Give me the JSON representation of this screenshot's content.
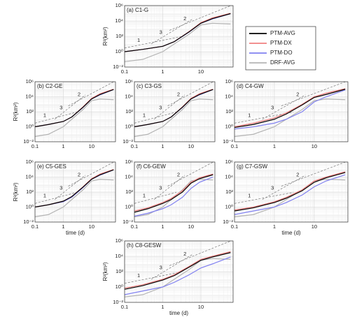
{
  "chart_data": [
    {
      "type": "line",
      "title": "(a) C1-G",
      "ylabel": "R²(km²)",
      "legend": true,
      "x": [
        0.1,
        0.3,
        1,
        2,
        5,
        10,
        20,
        60
      ],
      "series": [
        {
          "name": "PTM-AVG",
          "color": "#000000",
          "values": [
            1,
            2,
            5,
            20,
            400,
            5000,
            20000,
            90000
          ]
        },
        {
          "name": "PTM-DX",
          "color": "#f08080",
          "values": [
            1,
            2,
            5,
            20,
            450,
            6000,
            25000,
            100000
          ]
        },
        {
          "name": "PTM-DO",
          "color": "#8080f0",
          "values": [
            1,
            2,
            5,
            20,
            380,
            5000,
            18000,
            90000
          ]
        },
        {
          "name": "DRF-AVG",
          "color": "#b4b4b4",
          "values": [
            0.05,
            0.1,
            1,
            10,
            200,
            3000,
            5000,
            4000
          ]
        }
      ],
      "xlim": [
        0.1,
        70
      ],
      "ylim": [
        0.01,
        1000000
      ],
      "xticks": [
        0.1,
        1,
        10
      ],
      "yticks": [
        {
          "value": 0.01,
          "label": "10⁻²"
        },
        {
          "value": 1,
          "label": "10⁰"
        },
        {
          "value": 100,
          "label": "10²"
        },
        {
          "value": 10000,
          "label": "10⁴"
        },
        {
          "value": 1000000,
          "label": "10⁶"
        }
      ],
      "log_x": true,
      "log_y": true,
      "grid": true,
      "reference_lines": [
        {
          "label": "1",
          "x": [
            0.1,
            3
          ],
          "y": [
            3,
            90
          ]
        },
        {
          "label": "3",
          "x": [
            0.5,
            6
          ],
          "y": [
            10,
            17280
          ]
        },
        {
          "label": "2",
          "x": [
            1.5,
            60
          ],
          "y": [
            600,
            960000
          ]
        }
      ]
    },
    {
      "type": "line",
      "title": "(b) C2-GE",
      "ylabel": "R²(km²)",
      "x": [
        0.1,
        0.3,
        1,
        2,
        5,
        10,
        20,
        60
      ],
      "series": [
        {
          "color": "#000000",
          "values": [
            1,
            2,
            5,
            20,
            400,
            5000,
            20000,
            90000
          ]
        },
        {
          "color": "#f08080",
          "values": [
            1,
            2,
            5,
            20,
            450,
            6000,
            25000,
            100000
          ]
        },
        {
          "color": "#8080f0",
          "values": [
            1,
            2,
            5,
            20,
            380,
            5000,
            18000,
            90000
          ]
        },
        {
          "color": "#b4b4b4",
          "values": [
            0.05,
            0.1,
            1,
            10,
            200,
            3000,
            5000,
            4000
          ]
        }
      ],
      "xlim": [
        0.1,
        70
      ],
      "ylim": [
        0.01,
        1000000
      ],
      "xticks": [
        0.1,
        1,
        10
      ],
      "yticks": [
        {
          "value": 0.01,
          "label": "10⁻²"
        },
        {
          "value": 1,
          "label": "10⁰"
        },
        {
          "value": 100,
          "label": "10²"
        },
        {
          "value": 10000,
          "label": "10⁴"
        },
        {
          "value": 1000000,
          "label": "10⁶"
        }
      ],
      "log_x": true,
      "log_y": true,
      "grid": true,
      "reference_lines": [
        {
          "label": "1",
          "x": [
            0.1,
            3
          ],
          "y": [
            3,
            90
          ]
        },
        {
          "label": "3",
          "x": [
            0.5,
            6
          ],
          "y": [
            10,
            17280
          ]
        },
        {
          "label": "2",
          "x": [
            1.5,
            60
          ],
          "y": [
            600,
            960000
          ]
        }
      ]
    },
    {
      "type": "line",
      "title": "(c) C3-GS",
      "x": [
        0.1,
        0.3,
        1,
        2,
        5,
        10,
        20,
        60
      ],
      "series": [
        {
          "color": "#000000",
          "values": [
            1,
            2,
            5,
            20,
            400,
            5000,
            20000,
            90000
          ]
        },
        {
          "color": "#f08080",
          "values": [
            1,
            2,
            5,
            20,
            450,
            6000,
            25000,
            100000
          ]
        },
        {
          "color": "#8080f0",
          "values": [
            1,
            2,
            5,
            20,
            380,
            5000,
            18000,
            90000
          ]
        },
        {
          "color": "#b4b4b4",
          "values": [
            0.05,
            0.1,
            1,
            10,
            200,
            3000,
            5000,
            4000
          ]
        }
      ],
      "xlim": [
        0.1,
        70
      ],
      "ylim": [
        0.01,
        1000000
      ],
      "xticks": [
        0.1,
        1,
        10
      ],
      "yticks": [
        {
          "value": 0.01,
          "label": "10⁻²"
        },
        {
          "value": 1,
          "label": "10⁰"
        },
        {
          "value": 100,
          "label": "10²"
        },
        {
          "value": 10000,
          "label": "10⁴"
        },
        {
          "value": 1000000,
          "label": "10⁶"
        }
      ],
      "log_x": true,
      "log_y": true,
      "grid": true,
      "reference_lines": [
        {
          "label": "1",
          "x": [
            0.1,
            3
          ],
          "y": [
            3,
            90
          ]
        },
        {
          "label": "3",
          "x": [
            0.5,
            6
          ],
          "y": [
            10,
            17280
          ]
        },
        {
          "label": "2",
          "x": [
            1.5,
            60
          ],
          "y": [
            600,
            960000
          ]
        }
      ]
    },
    {
      "type": "line",
      "title": "(d) C4-GW",
      "x": [
        0.1,
        0.3,
        1,
        2,
        5,
        10,
        20,
        60
      ],
      "series": [
        {
          "color": "#000000",
          "values": [
            0.8,
            2,
            10,
            50,
            800,
            8000,
            20000,
            100000
          ]
        },
        {
          "color": "#f08080",
          "values": [
            1,
            3,
            15,
            70,
            1000,
            10000,
            30000,
            120000
          ]
        },
        {
          "color": "#8080f0",
          "values": [
            0.5,
            1,
            3,
            10,
            100,
            2000,
            10000,
            80000
          ]
        },
        {
          "color": "#b4b4b4",
          "values": [
            0.05,
            0.1,
            1,
            10,
            200,
            3000,
            5000,
            4000
          ]
        }
      ],
      "xlim": [
        0.1,
        70
      ],
      "ylim": [
        0.01,
        1000000
      ],
      "xticks": [
        0.1,
        1,
        10
      ],
      "yticks": [
        {
          "value": 0.01,
          "label": "10⁻²"
        },
        {
          "value": 1,
          "label": "10⁰"
        },
        {
          "value": 100,
          "label": "10²"
        },
        {
          "value": 10000,
          "label": "10⁴"
        },
        {
          "value": 1000000,
          "label": "10⁶"
        }
      ],
      "log_x": true,
      "log_y": true,
      "grid": true,
      "reference_lines": [
        {
          "label": "1",
          "x": [
            0.1,
            3
          ],
          "y": [
            3,
            90
          ]
        },
        {
          "label": "3",
          "x": [
            0.5,
            6
          ],
          "y": [
            10,
            17280
          ]
        },
        {
          "label": "2",
          "x": [
            1.5,
            60
          ],
          "y": [
            600,
            960000
          ]
        }
      ]
    },
    {
      "type": "line",
      "title": "(e) C5-GES",
      "ylabel": "R²(km²)",
      "xlabel": "time (d)",
      "x": [
        0.1,
        0.3,
        1,
        2,
        5,
        10,
        20,
        60
      ],
      "series": [
        {
          "color": "#000000",
          "values": [
            1,
            2,
            6,
            25,
            450,
            5000,
            20000,
            90000
          ]
        },
        {
          "color": "#f08080",
          "values": [
            1,
            2,
            6,
            25,
            500,
            6000,
            25000,
            100000
          ]
        },
        {
          "color": "#8080f0",
          "values": [
            1,
            2,
            5,
            20,
            400,
            5000,
            18000,
            90000
          ]
        },
        {
          "color": "#b4b4b4",
          "values": [
            0.05,
            0.1,
            1,
            10,
            200,
            3000,
            5000,
            4000
          ]
        }
      ],
      "xlim": [
        0.1,
        70
      ],
      "ylim": [
        0.01,
        1000000
      ],
      "xticks": [
        0.1,
        1,
        10
      ],
      "yticks": [
        {
          "value": 0.01,
          "label": "10⁻²"
        },
        {
          "value": 1,
          "label": "10⁰"
        },
        {
          "value": 100,
          "label": "10²"
        },
        {
          "value": 10000,
          "label": "10⁴"
        },
        {
          "value": 1000000,
          "label": "10⁶"
        }
      ],
      "log_x": true,
      "log_y": true,
      "grid": true,
      "reference_lines": [
        {
          "label": "1",
          "x": [
            0.1,
            3
          ],
          "y": [
            3,
            90
          ]
        },
        {
          "label": "3",
          "x": [
            0.5,
            6
          ],
          "y": [
            10,
            17280
          ]
        },
        {
          "label": "2",
          "x": [
            1.5,
            60
          ],
          "y": [
            600,
            960000
          ]
        }
      ]
    },
    {
      "type": "line",
      "title": "(f) C6-GEW",
      "x": [
        0.1,
        0.3,
        1,
        2,
        5,
        10,
        20,
        60
      ],
      "series": [
        {
          "color": "#000000",
          "values": [
            0.2,
            0.6,
            3,
            10,
            100,
            1500,
            6000,
            20000
          ]
        },
        {
          "color": "#f08080",
          "values": [
            0.3,
            0.8,
            4,
            14,
            150,
            2000,
            8000,
            25000
          ]
        },
        {
          "color": "#8080f0",
          "values": [
            0.06,
            0.15,
            0.6,
            2,
            20,
            300,
            2000,
            10000
          ]
        },
        {
          "color": "#b4b4b4",
          "values": [
            0.05,
            0.1,
            1,
            10,
            200,
            3000,
            5000,
            4000
          ]
        }
      ],
      "xlim": [
        0.1,
        70
      ],
      "ylim": [
        0.01,
        1000000
      ],
      "xticks": [
        0.1,
        1,
        10
      ],
      "yticks": [
        {
          "value": 0.01,
          "label": "10⁻²"
        },
        {
          "value": 1,
          "label": "10⁰"
        },
        {
          "value": 100,
          "label": "10²"
        },
        {
          "value": 10000,
          "label": "10⁴"
        },
        {
          "value": 1000000,
          "label": "10⁶"
        }
      ],
      "log_x": true,
      "log_y": true,
      "grid": true,
      "reference_lines": [
        {
          "label": "1",
          "x": [
            0.1,
            3
          ],
          "y": [
            3,
            90
          ]
        },
        {
          "label": "3",
          "x": [
            0.5,
            6
          ],
          "y": [
            10,
            17280
          ]
        },
        {
          "label": "2",
          "x": [
            1.5,
            60
          ],
          "y": [
            600,
            960000
          ]
        }
      ]
    },
    {
      "type": "line",
      "title": "(g) C7-GSW",
      "xlabel": "time (d)",
      "x": [
        0.1,
        0.3,
        1,
        2,
        5,
        10,
        20,
        60
      ],
      "series": [
        {
          "color": "#000000",
          "values": [
            0.3,
            0.8,
            4,
            15,
            150,
            2000,
            8000,
            40000
          ]
        },
        {
          "color": "#f08080",
          "values": [
            0.4,
            1,
            5,
            20,
            200,
            3000,
            10000,
            50000
          ]
        },
        {
          "color": "#8080f0",
          "values": [
            0.1,
            0.3,
            1,
            4,
            40,
            500,
            3000,
            20000
          ]
        },
        {
          "color": "#b4b4b4",
          "values": [
            0.05,
            0.1,
            1,
            10,
            200,
            3000,
            5000,
            4000
          ]
        }
      ],
      "xlim": [
        0.1,
        70
      ],
      "ylim": [
        0.01,
        1000000
      ],
      "xticks": [
        0.1,
        1,
        10
      ],
      "yticks": [
        {
          "value": 0.01,
          "label": "10⁻²"
        },
        {
          "value": 1,
          "label": "10⁰"
        },
        {
          "value": 100,
          "label": "10²"
        },
        {
          "value": 10000,
          "label": "10⁴"
        },
        {
          "value": 1000000,
          "label": "10⁶"
        }
      ],
      "log_x": true,
      "log_y": true,
      "grid": true,
      "reference_lines": [
        {
          "label": "1",
          "x": [
            0.1,
            3
          ],
          "y": [
            3,
            90
          ]
        },
        {
          "label": "3",
          "x": [
            0.5,
            6
          ],
          "y": [
            10,
            17280
          ]
        },
        {
          "label": "2",
          "x": [
            1.5,
            60
          ],
          "y": [
            600,
            960000
          ]
        }
      ]
    },
    {
      "type": "line",
      "title": "(h) C8-GESW",
      "ylabel": "R²(km²)",
      "xlabel": "time (d)",
      "x": [
        0.1,
        0.3,
        1,
        2,
        5,
        10,
        20,
        60
      ],
      "series": [
        {
          "color": "#000000",
          "values": [
            0.5,
            1.5,
            8,
            30,
            400,
            3000,
            8000,
            30000
          ]
        },
        {
          "color": "#f08080",
          "values": [
            0.7,
            2,
            10,
            40,
            500,
            4000,
            10000,
            40000
          ]
        },
        {
          "color": "#8080f0",
          "values": [
            0.1,
            0.3,
            1,
            4,
            40,
            300,
            1000,
            8000
          ]
        },
        {
          "color": "#b4b4b4",
          "values": [
            0.05,
            0.1,
            1,
            10,
            200,
            3000,
            5000,
            4000
          ]
        }
      ],
      "xlim": [
        0.1,
        70
      ],
      "ylim": [
        0.01,
        1000000
      ],
      "xticks": [
        0.1,
        1,
        10
      ],
      "yticks": [
        {
          "value": 0.01,
          "label": "10⁻²"
        },
        {
          "value": 1,
          "label": "10⁰"
        },
        {
          "value": 100,
          "label": "10²"
        },
        {
          "value": 10000,
          "label": "10⁴"
        },
        {
          "value": 1000000,
          "label": "10⁶"
        }
      ],
      "log_x": true,
      "log_y": true,
      "grid": true,
      "reference_lines": [
        {
          "label": "1",
          "x": [
            0.1,
            3
          ],
          "y": [
            3,
            90
          ]
        },
        {
          "label": "3",
          "x": [
            0.5,
            6
          ],
          "y": [
            10,
            17280
          ]
        },
        {
          "label": "2",
          "x": [
            1.5,
            60
          ],
          "y": [
            600,
            960000
          ]
        }
      ]
    }
  ]
}
